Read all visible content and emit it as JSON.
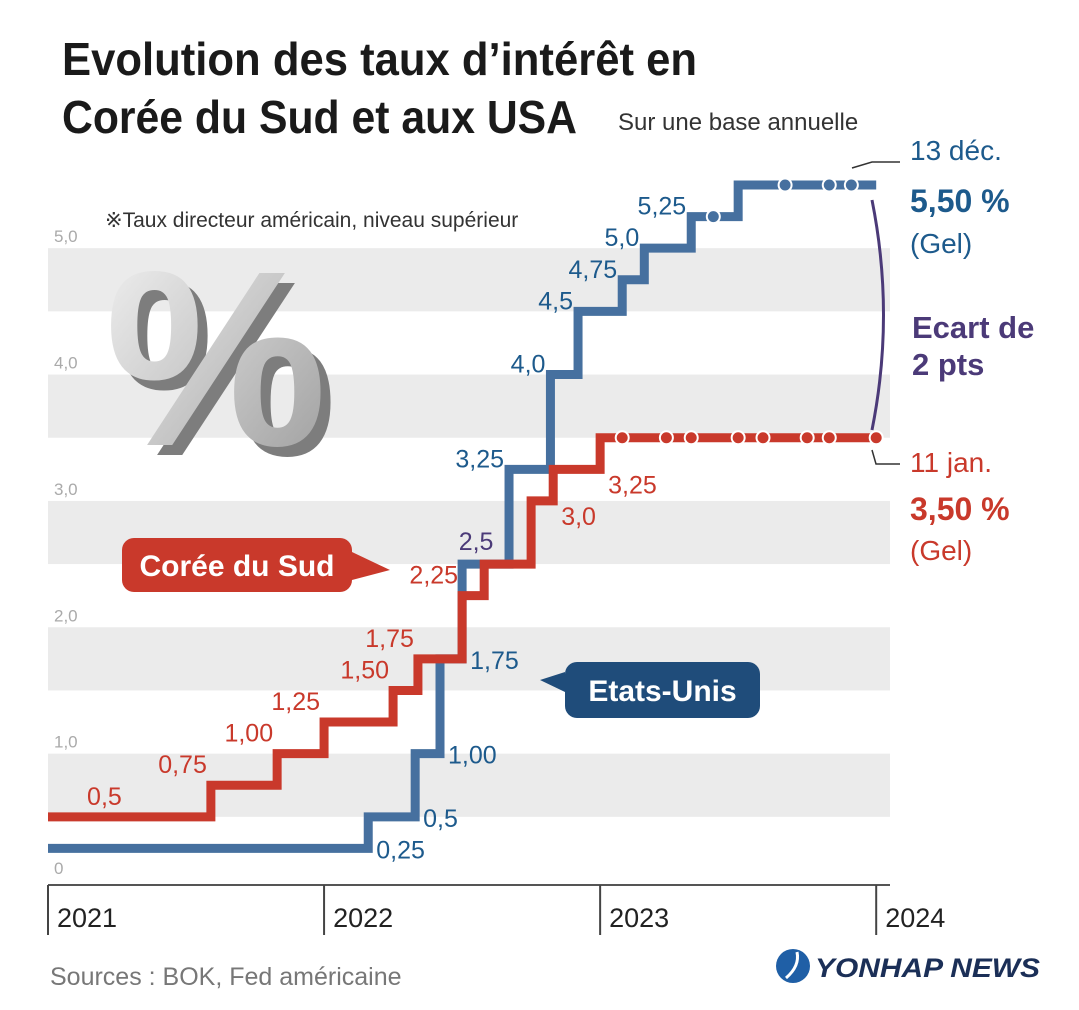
{
  "chart_data": {
    "type": "step-line",
    "title": [
      "Evolution des taux d’intérêt en",
      "Corée du Sud et aux USA"
    ],
    "subtitle": "Sur une base annuelle",
    "note": "※Taux directeur américain, niveau supérieur",
    "decor_symbol": "%",
    "xlim": [
      2021,
      2024.05
    ],
    "xticks": [
      2021,
      2022,
      2023,
      2024
    ],
    "ylim": [
      0,
      5.5
    ],
    "yticks": [
      0,
      {
        "value": 1,
        "label": "1,0"
      },
      {
        "value": 2,
        "label": "2,0"
      },
      {
        "value": 3,
        "label": "3,0"
      },
      {
        "value": 4,
        "label": "4,0"
      },
      {
        "value": 5,
        "label": "5,0"
      }
    ],
    "grid": true,
    "series": [
      {
        "name": "Etats-Unis",
        "color": "#46709f",
        "label_color": "#1d5a8c",
        "box_color": "#1f4c7a",
        "x": [
          2021,
          2022.16,
          2022.33,
          2022.42,
          2022.5,
          2022.67,
          2022.82,
          2022.92,
          2023.08,
          2023.16,
          2023.33,
          2023.5,
          2024
        ],
        "values": [
          0.25,
          0.5,
          1,
          1.75,
          2.5,
          3.25,
          4,
          4.5,
          4.75,
          5,
          5.25,
          5.5,
          5.5
        ],
        "value_labels": [
          "0,25",
          "0,5",
          "1,00",
          "1,75",
          "2,5",
          "3,25",
          "4,0",
          "4,5",
          "4,75",
          "5,0",
          "5,25",
          null,
          null
        ],
        "hold_x": [
          2023.41,
          2023.67,
          2023.83,
          2023.91
        ],
        "end_labels": [
          "13 déc.",
          "5,50 %",
          "(Gel)"
        ]
      },
      {
        "name": "Corée du Sud",
        "color": "#c9392b",
        "label_color": "#c9392b",
        "box_color": "#c9392b",
        "x": [
          2021,
          2021.59,
          2021.83,
          2022.0,
          2022.25,
          2022.34,
          2022.5,
          2022.58,
          2022.75,
          2022.83,
          2023.0,
          2024
        ],
        "values": [
          0.5,
          0.75,
          1,
          1.25,
          1.5,
          1.75,
          2.25,
          2.5,
          3,
          3.25,
          3.5,
          3.5
        ],
        "value_labels": [
          "0,5",
          "0,75",
          "1,00",
          "1,25",
          "1,50",
          "1,75",
          "2,25",
          null,
          "3,0",
          "3,25",
          null,
          null
        ],
        "hold_x": [
          2023.08,
          2023.24,
          2023.33,
          2023.5,
          2023.59,
          2023.75,
          2023.83,
          2024.0
        ],
        "end_labels": [
          "11 jan.",
          "3,50 %",
          "(Gel)"
        ]
      }
    ],
    "gap_label": [
      "Ecart de",
      "2 pts"
    ],
    "gap_color": "#4b3a78",
    "source": "Sources : BOK, Fed américaine",
    "logo": "YONHAP NEWS"
  }
}
